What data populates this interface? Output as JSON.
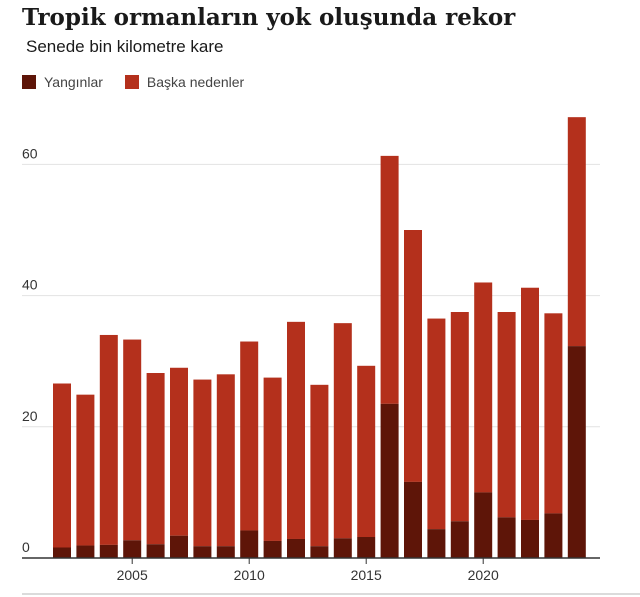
{
  "title": "Tropik ormanların yok oluşunda rekor",
  "subtitle": "Senede bin kilometre kare",
  "colors": {
    "fires": "#5e1508",
    "other": "#b4301c",
    "grid": "#e2e2e2",
    "axis": "#333333"
  },
  "chart_data": {
    "type": "bar",
    "stacked": true,
    "categories": [
      2002,
      2003,
      2004,
      2005,
      2006,
      2007,
      2008,
      2009,
      2010,
      2011,
      2012,
      2013,
      2014,
      2015,
      2016,
      2017,
      2018,
      2019,
      2020,
      2021,
      2022,
      2023,
      2024
    ],
    "series": [
      {
        "name": "Yangınlar",
        "values": [
          1.6,
          1.9,
          2.0,
          2.7,
          2.1,
          3.4,
          1.8,
          1.8,
          4.2,
          2.6,
          2.9,
          1.8,
          3.0,
          3.2,
          23.5,
          11.6,
          4.4,
          5.6,
          10.0,
          6.2,
          5.8,
          6.8,
          32.3
        ]
      },
      {
        "name": "Başka nedenler",
        "values": [
          25.0,
          23.0,
          32.0,
          30.6,
          26.1,
          25.6,
          25.4,
          26.2,
          28.8,
          24.9,
          33.1,
          24.6,
          32.8,
          26.1,
          37.8,
          38.4,
          32.1,
          31.9,
          32.0,
          31.3,
          35.4,
          30.5,
          34.9
        ]
      }
    ],
    "yticks": [
      0,
      20,
      40,
      60
    ],
    "xticks": [
      2005,
      2010,
      2015,
      2020
    ],
    "ylim": [
      0,
      70
    ],
    "xlabel": "",
    "ylabel": "",
    "grid": true,
    "legend": "top-left"
  }
}
